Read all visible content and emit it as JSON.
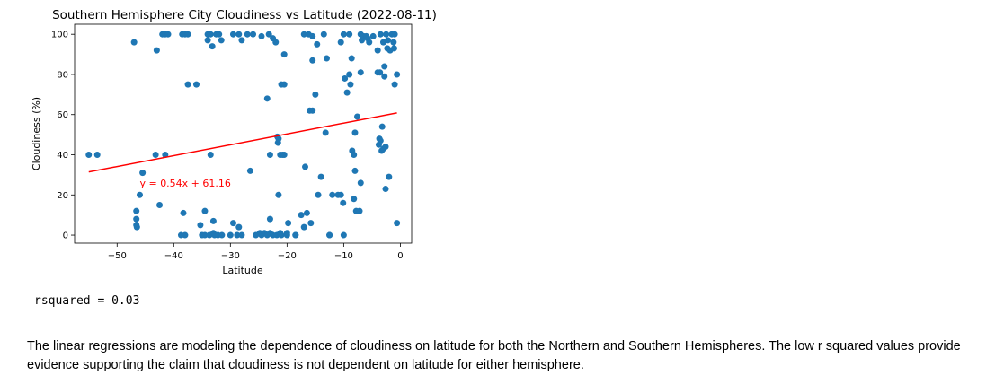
{
  "chart_data": {
    "type": "scatter",
    "title": "Southern Hemisphere City Cloudiness vs Latitude (2022-08-11)",
    "xlabel": "Latitude",
    "ylabel": "Cloudiness (%)",
    "xlim": [
      -57.5,
      2
    ],
    "ylim": [
      -4,
      105
    ],
    "xticks": [
      -50,
      -40,
      -30,
      -20,
      -10,
      0
    ],
    "yticks": [
      0,
      20,
      40,
      60,
      80,
      100
    ],
    "grid": false,
    "colors": {
      "points": "#1f77b4",
      "regression": "#ff0000",
      "annotation": "#ff0000"
    },
    "regression": {
      "slope": 0.54,
      "intercept": 61.16,
      "x_range": [
        -55.0,
        -0.6
      ]
    },
    "annotation": {
      "text": "y = 0.54x + 61.16",
      "x": -46,
      "y": 26
    },
    "points": [
      [
        -55,
        40
      ],
      [
        -53.5,
        40
      ],
      [
        -47,
        96
      ],
      [
        -46.6,
        8
      ],
      [
        -46.6,
        5
      ],
      [
        -46.6,
        12
      ],
      [
        -46.5,
        4
      ],
      [
        -46,
        20
      ],
      [
        -45.5,
        31
      ],
      [
        -43.2,
        40
      ],
      [
        -43,
        92
      ],
      [
        -42.5,
        15
      ],
      [
        -42,
        100
      ],
      [
        -41.5,
        100
      ],
      [
        -41.5,
        40
      ],
      [
        -41,
        100
      ],
      [
        -38.7,
        0
      ],
      [
        -38.3,
        11
      ],
      [
        -38,
        0
      ],
      [
        -38.5,
        100
      ],
      [
        -38,
        100
      ],
      [
        -37.5,
        100
      ],
      [
        -37.5,
        75
      ],
      [
        -36,
        75
      ],
      [
        -35.3,
        5
      ],
      [
        -35,
        0
      ],
      [
        -34.5,
        12
      ],
      [
        -34.5,
        0
      ],
      [
        -34,
        100
      ],
      [
        -34,
        97
      ],
      [
        -33.7,
        0
      ],
      [
        -33.5,
        100
      ],
      [
        -33.5,
        40
      ],
      [
        -33.2,
        94
      ],
      [
        -33,
        7
      ],
      [
        -33,
        1
      ],
      [
        -32.8,
        0
      ],
      [
        -32.5,
        100
      ],
      [
        -32,
        100
      ],
      [
        -32.2,
        0
      ],
      [
        -31.5,
        0
      ],
      [
        -31.6,
        97
      ],
      [
        -30,
        0
      ],
      [
        -29.5,
        100
      ],
      [
        -29.5,
        6
      ],
      [
        -28.8,
        0
      ],
      [
        -28.5,
        4
      ],
      [
        -28.5,
        100
      ],
      [
        -28,
        97
      ],
      [
        -28,
        0
      ],
      [
        -27,
        100
      ],
      [
        -26.5,
        32
      ],
      [
        -26,
        100
      ],
      [
        -25.5,
        0
      ],
      [
        -24.8,
        1
      ],
      [
        -24.5,
        0
      ],
      [
        -24.5,
        99
      ],
      [
        -24,
        1
      ],
      [
        -23.5,
        0
      ],
      [
        -23.5,
        68
      ],
      [
        -23.2,
        100
      ],
      [
        -23,
        40
      ],
      [
        -23,
        8
      ],
      [
        -23,
        1
      ],
      [
        -22.5,
        0
      ],
      [
        -22.5,
        98
      ],
      [
        -22,
        96
      ],
      [
        -21.8,
        0
      ],
      [
        -21.7,
        49
      ],
      [
        -21.6,
        46
      ],
      [
        -21.5,
        48
      ],
      [
        -21.5,
        20
      ],
      [
        -21.2,
        40
      ],
      [
        -21.2,
        1
      ],
      [
        -21,
        75
      ],
      [
        -21,
        0
      ],
      [
        -20.8,
        40
      ],
      [
        -20.5,
        75
      ],
      [
        -20.5,
        90
      ],
      [
        -20.5,
        40
      ],
      [
        -20,
        0
      ],
      [
        -20,
        1
      ],
      [
        -19.8,
        6
      ],
      [
        -18.5,
        0
      ],
      [
        -18.5,
        0
      ],
      [
        -17.5,
        10
      ],
      [
        -17,
        4
      ],
      [
        -17,
        100
      ],
      [
        -16.8,
        34
      ],
      [
        -16.5,
        11
      ],
      [
        -16.2,
        100
      ],
      [
        -16,
        62
      ],
      [
        -15.8,
        6
      ],
      [
        -15.5,
        87
      ],
      [
        -15.5,
        62
      ],
      [
        -15.5,
        99
      ],
      [
        -15,
        70
      ],
      [
        -14.7,
        95
      ],
      [
        -14.5,
        20
      ],
      [
        -14,
        29
      ],
      [
        -13.5,
        100
      ],
      [
        -13.2,
        51
      ],
      [
        -13,
        88
      ],
      [
        -12.5,
        0
      ],
      [
        -12.5,
        0
      ],
      [
        -12,
        20
      ],
      [
        -11,
        20
      ],
      [
        -10.5,
        20
      ],
      [
        -10.5,
        96
      ],
      [
        -10,
        100
      ],
      [
        -10.1,
        16
      ],
      [
        -10,
        0
      ],
      [
        -9.8,
        78
      ],
      [
        -9.4,
        71
      ],
      [
        -9,
        100
      ],
      [
        -9,
        80
      ],
      [
        -8.8,
        75
      ],
      [
        -8.5,
        42
      ],
      [
        -8.6,
        88
      ],
      [
        -8.2,
        40
      ],
      [
        -8.2,
        18
      ],
      [
        -8,
        51
      ],
      [
        -8,
        32
      ],
      [
        -7.8,
        12
      ],
      [
        -7.6,
        59
      ],
      [
        -7.2,
        12
      ],
      [
        -7,
        100
      ],
      [
        -7,
        81
      ],
      [
        -7,
        26
      ],
      [
        -6.8,
        97
      ],
      [
        -6.5,
        99
      ],
      [
        -6,
        99
      ],
      [
        -5.8,
        98
      ],
      [
        -5.5,
        96
      ],
      [
        -4.8,
        99
      ],
      [
        -4,
        81
      ],
      [
        -4,
        92
      ],
      [
        -3.8,
        45
      ],
      [
        -3.7,
        48
      ],
      [
        -3.6,
        81
      ],
      [
        -3.5,
        100
      ],
      [
        -3.5,
        47
      ],
      [
        -3.3,
        42
      ],
      [
        -3.2,
        54
      ],
      [
        -3,
        96
      ],
      [
        -3,
        43
      ],
      [
        -2.8,
        84
      ],
      [
        -2.8,
        79
      ],
      [
        -2.6,
        44
      ],
      [
        -2.6,
        23
      ],
      [
        -2.5,
        100
      ],
      [
        -2.3,
        93
      ],
      [
        -2.2,
        97
      ],
      [
        -2,
        29
      ],
      [
        -1.8,
        92
      ],
      [
        -1.5,
        100
      ],
      [
        -1.2,
        96
      ],
      [
        -1.1,
        93
      ],
      [
        -1,
        75
      ],
      [
        -1,
        100
      ],
      [
        -0.6,
        80
      ],
      [
        -0.6,
        6
      ]
    ]
  },
  "output": {
    "text": "rsquared = 0.03"
  },
  "markdown": {
    "paragraph": "The linear regressions are modeling the dependence of cloudiness on latitude for both the Northern and Southern Hemispheres. The low r squared values provide evidence supporting the claim that cloudiness is not dependent on latitude for either hemisphere."
  }
}
